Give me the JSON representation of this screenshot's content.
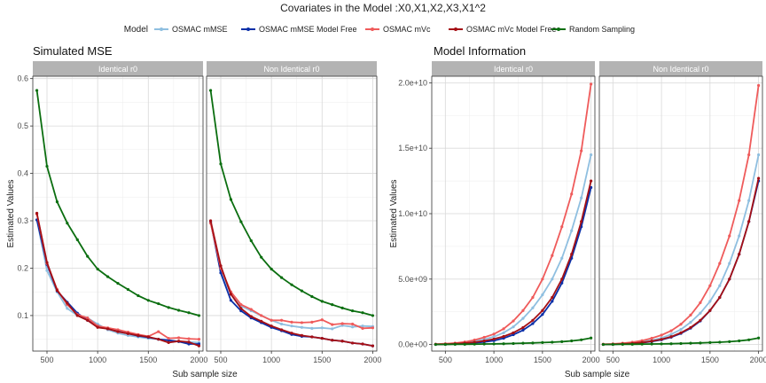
{
  "figure": {
    "title": "Covariates in the Model :X0,X1,X2,X3,X1^2",
    "legend_title": "Model",
    "xlabel": "Sub sample size"
  },
  "colors": {
    "OSMAC mMSE": "#8fbfe0",
    "OSMAC mMSE Model Free": "#0a2fa8",
    "OSMAC mVc": "#ef5b5b",
    "OSMAC mVc Model Free": "#a50f15",
    "Random Sampling": "#0b6e10",
    "strip": "#b3b3b3",
    "grid": "#d9d9d9"
  },
  "legend": {
    "position": "top",
    "items": [
      "OSMAC mMSE",
      "OSMAC mMSE Model Free",
      "OSMAC mVc",
      "OSMAC mVc Model Free",
      "Random Sampling"
    ]
  },
  "chart_data": [
    {
      "type": "line",
      "title": "Simulated MSE",
      "ylabel": "Estimated Values",
      "xlim": [
        360,
        2040
      ],
      "ylim": [
        0.025,
        0.605
      ],
      "xticks": [
        500,
        1000,
        1500,
        2000
      ],
      "yticks": [
        0.1,
        0.2,
        0.3,
        0.4,
        0.5,
        0.6
      ],
      "ytick_labels": [
        "0.1",
        "0.2",
        "0.3",
        "0.4",
        "0.5",
        "0.6"
      ],
      "x": [
        400,
        500,
        600,
        700,
        800,
        900,
        1000,
        1100,
        1200,
        1300,
        1400,
        1500,
        1600,
        1700,
        1800,
        1900,
        2000
      ],
      "panels": [
        {
          "strip": "Identical r0",
          "series": [
            {
              "name": "OSMAC mMSE",
              "values": [
                0.302,
                0.195,
                0.15,
                0.115,
                0.1,
                0.095,
                0.082,
                0.07,
                0.063,
                0.058,
                0.055,
                0.052,
                0.05,
                0.047,
                0.045,
                0.044,
                0.043
              ]
            },
            {
              "name": "OSMAC mMSE Model Free",
              "values": [
                0.302,
                0.208,
                0.152,
                0.128,
                0.105,
                0.09,
                0.078,
                0.072,
                0.067,
                0.062,
                0.057,
                0.054,
                0.05,
                0.048,
                0.045,
                0.04,
                0.04
              ]
            },
            {
              "name": "OSMAC mVc",
              "values": [
                0.314,
                0.21,
                0.155,
                0.123,
                0.102,
                0.095,
                0.078,
                0.074,
                0.07,
                0.065,
                0.06,
                0.056,
                0.066,
                0.052,
                0.053,
                0.051,
                0.05
              ]
            },
            {
              "name": "OSMAC mVc Model Free",
              "values": [
                0.316,
                0.212,
                0.153,
                0.126,
                0.1,
                0.09,
                0.075,
                0.072,
                0.066,
                0.062,
                0.058,
                0.055,
                0.05,
                0.043,
                0.046,
                0.044,
                0.036
              ]
            },
            {
              "name": "Random Sampling",
              "values": [
                0.575,
                0.415,
                0.34,
                0.295,
                0.26,
                0.225,
                0.198,
                0.182,
                0.168,
                0.155,
                0.142,
                0.132,
                0.125,
                0.117,
                0.111,
                0.106,
                0.1
              ]
            }
          ]
        },
        {
          "strip": "Non Identical r0",
          "series": [
            {
              "name": "OSMAC mMSE",
              "values": [
                0.296,
                0.195,
                0.145,
                0.12,
                0.11,
                0.1,
                0.09,
                0.082,
                0.078,
                0.075,
                0.073,
                0.074,
                0.072,
                0.079,
                0.076,
                0.078,
                0.077
              ]
            },
            {
              "name": "OSMAC mMSE Model Free",
              "values": [
                0.298,
                0.19,
                0.132,
                0.11,
                0.095,
                0.085,
                0.075,
                0.068,
                0.06,
                0.056,
                0.055,
                0.052,
                0.048,
                0.046,
                0.042,
                0.04,
                0.036
              ]
            },
            {
              "name": "OSMAC mVc",
              "values": [
                0.295,
                0.2,
                0.15,
                0.123,
                0.113,
                0.1,
                0.09,
                0.09,
                0.086,
                0.085,
                0.086,
                0.091,
                0.081,
                0.083,
                0.082,
                0.073,
                0.074
              ]
            },
            {
              "name": "OSMAC mVc Model Free",
              "values": [
                0.3,
                0.205,
                0.145,
                0.115,
                0.098,
                0.088,
                0.078,
                0.07,
                0.063,
                0.058,
                0.055,
                0.052,
                0.048,
                0.046,
                0.042,
                0.04,
                0.036
              ]
            },
            {
              "name": "Random Sampling",
              "values": [
                0.575,
                0.42,
                0.345,
                0.298,
                0.258,
                0.223,
                0.198,
                0.18,
                0.165,
                0.152,
                0.14,
                0.13,
                0.123,
                0.116,
                0.11,
                0.106,
                0.1
              ]
            }
          ]
        }
      ]
    },
    {
      "type": "line",
      "title": "Model Information",
      "ylabel": "Estimated Values",
      "xlim": [
        360,
        2040
      ],
      "ylim": [
        -500000000.0,
        20500000000.0
      ],
      "xticks": [
        500,
        1000,
        1500,
        2000
      ],
      "yticks": [
        0,
        5000000000.0,
        10000000000.0,
        15000000000.0,
        20000000000.0
      ],
      "ytick_labels": [
        "0.0e+00",
        "5.0e+09",
        "1.0e+10",
        "1.5e+10",
        "2.0e+10"
      ],
      "x": [
        400,
        500,
        600,
        700,
        800,
        900,
        1000,
        1100,
        1200,
        1300,
        1400,
        1500,
        1600,
        1700,
        1800,
        1900,
        2000
      ],
      "panels": [
        {
          "strip": "Identical r0",
          "series": [
            {
              "name": "OSMAC mMSE",
              "values": [
                20000000.0,
                40000000.0,
                80000000.0,
                150000000.0,
                250000000.0,
                400000000.0,
                600000000.0,
                900000000.0,
                1350000000.0,
                2000000000.0,
                2800000000.0,
                3800000000.0,
                5000000000.0,
                6600000000.0,
                8700000000.0,
                11200000000.0,
                14500000000.0
              ]
            },
            {
              "name": "OSMAC mMSE Model Free",
              "values": [
                10000000.0,
                20000000.0,
                40000000.0,
                80000000.0,
                130000000.0,
                200000000.0,
                300000000.0,
                480000000.0,
                750000000.0,
                1100000000.0,
                1600000000.0,
                2300000000.0,
                3300000000.0,
                4700000000.0,
                6600000000.0,
                9000000000.0,
                12000000000.0
              ]
            },
            {
              "name": "OSMAC mVc",
              "values": [
                30000000.0,
                60000000.0,
                110000000.0,
                200000000.0,
                350000000.0,
                550000000.0,
                800000000.0,
                1200000000.0,
                1800000000.0,
                2600000000.0,
                3600000000.0,
                5000000000.0,
                6800000000.0,
                9000000000.0,
                11500000000.0,
                14800000000.0,
                19900000000.0
              ]
            },
            {
              "name": "OSMAC mVc Model Free",
              "values": [
                15000000.0,
                30000000.0,
                60000000.0,
                110000000.0,
                180000000.0,
                280000000.0,
                420000000.0,
                620000000.0,
                900000000.0,
                1300000000.0,
                1850000000.0,
                2600000000.0,
                3600000000.0,
                5000000000.0,
                6900000000.0,
                9400000000.0,
                12500000000.0
              ]
            },
            {
              "name": "Random Sampling",
              "values": [
                5000000.0,
                10000000.0,
                15000000.0,
                20000000.0,
                30000000.0,
                40000000.0,
                50000000.0,
                60000000.0,
                80000000.0,
                100000000.0,
                120000000.0,
                150000000.0,
                180000000.0,
                220000000.0,
                280000000.0,
                360000000.0,
                500000000.0
              ]
            }
          ]
        },
        {
          "strip": "Non Identical r0",
          "series": [
            {
              "name": "OSMAC mMSE",
              "values": [
                15000000.0,
                30000000.0,
                60000000.0,
                110000000.0,
                200000000.0,
                320000000.0,
                500000000.0,
                780000000.0,
                1150000000.0,
                1700000000.0,
                2400000000.0,
                3300000000.0,
                4500000000.0,
                6200000000.0,
                8300000000.0,
                11000000000.0,
                14500000000.0
              ]
            },
            {
              "name": "OSMAC mMSE Model Free",
              "values": [
                10000000.0,
                20000000.0,
                40000000.0,
                80000000.0,
                140000000.0,
                230000000.0,
                360000000.0,
                560000000.0,
                850000000.0,
                1250000000.0,
                1800000000.0,
                2600000000.0,
                3600000000.0,
                5000000000.0,
                6900000000.0,
                9400000000.0,
                12500000000.0
              ]
            },
            {
              "name": "OSMAC mVc",
              "values": [
                25000000.0,
                50000000.0,
                100000000.0,
                180000000.0,
                300000000.0,
                480000000.0,
                720000000.0,
                1050000000.0,
                1550000000.0,
                2250000000.0,
                3200000000.0,
                4500000000.0,
                6200000000.0,
                8300000000.0,
                11000000000.0,
                14500000000.0,
                19800000000.0
              ]
            },
            {
              "name": "OSMAC mVc Model Free",
              "values": [
                12000000.0,
                25000000.0,
                50000000.0,
                90000000.0,
                160000000.0,
                260000000.0,
                400000000.0,
                600000000.0,
                900000000.0,
                1300000000.0,
                1850000000.0,
                2600000000.0,
                3600000000.0,
                5000000000.0,
                6900000000.0,
                9400000000.0,
                12700000000.0
              ]
            },
            {
              "name": "Random Sampling",
              "values": [
                5000000.0,
                10000000.0,
                15000000.0,
                20000000.0,
                30000000.0,
                40000000.0,
                50000000.0,
                60000000.0,
                80000000.0,
                100000000.0,
                120000000.0,
                150000000.0,
                180000000.0,
                220000000.0,
                280000000.0,
                360000000.0,
                500000000.0
              ]
            }
          ]
        }
      ]
    }
  ]
}
